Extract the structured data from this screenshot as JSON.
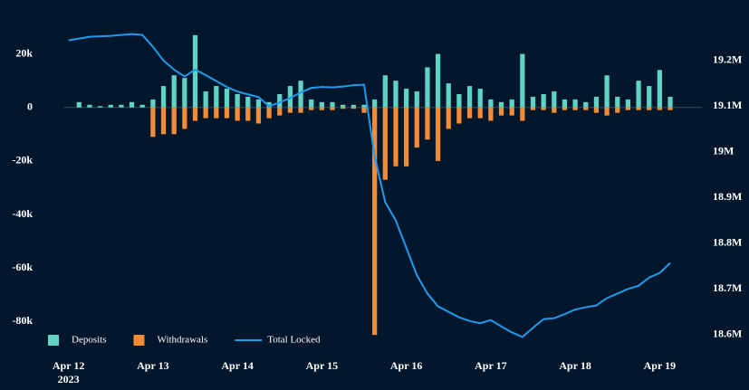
{
  "chart_data": {
    "type": "bar",
    "x": [
      "2023-04-12T00:00",
      "2023-04-12T03:00",
      "2023-04-12T06:00",
      "2023-04-12T09:00",
      "2023-04-12T12:00",
      "2023-04-12T15:00",
      "2023-04-12T18:00",
      "2023-04-12T21:00",
      "2023-04-13T00:00",
      "2023-04-13T03:00",
      "2023-04-13T06:00",
      "2023-04-13T09:00",
      "2023-04-13T12:00",
      "2023-04-13T15:00",
      "2023-04-13T18:00",
      "2023-04-13T21:00",
      "2023-04-14T00:00",
      "2023-04-14T03:00",
      "2023-04-14T06:00",
      "2023-04-14T09:00",
      "2023-04-14T12:00",
      "2023-04-14T15:00",
      "2023-04-14T18:00",
      "2023-04-14T21:00",
      "2023-04-15T00:00",
      "2023-04-15T03:00",
      "2023-04-15T06:00",
      "2023-04-15T09:00",
      "2023-04-15T12:00",
      "2023-04-15T15:00",
      "2023-04-15T18:00",
      "2023-04-15T21:00",
      "2023-04-16T00:00",
      "2023-04-16T03:00",
      "2023-04-16T06:00",
      "2023-04-16T09:00",
      "2023-04-16T12:00",
      "2023-04-16T15:00",
      "2023-04-16T18:00",
      "2023-04-16T21:00",
      "2023-04-17T00:00",
      "2023-04-17T03:00",
      "2023-04-17T06:00",
      "2023-04-17T09:00",
      "2023-04-17T12:00",
      "2023-04-17T15:00",
      "2023-04-17T18:00",
      "2023-04-17T21:00",
      "2023-04-18T00:00",
      "2023-04-18T03:00",
      "2023-04-18T06:00",
      "2023-04-18T09:00",
      "2023-04-18T12:00",
      "2023-04-18T15:00",
      "2023-04-18T18:00",
      "2023-04-18T21:00",
      "2023-04-19T00:00",
      "2023-04-19T03:00"
    ],
    "series": [
      {
        "name": "Deposits",
        "type": "bar",
        "color": "#5fd3c6",
        "values": [
          0,
          2000,
          1000,
          500,
          1000,
          1000,
          2000,
          1000,
          3000,
          8000,
          12000,
          11000,
          27000,
          6000,
          8000,
          7000,
          5000,
          4000,
          3000,
          2000,
          5000,
          8000,
          10000,
          3000,
          2000,
          2000,
          1000,
          1000,
          1000,
          3000,
          12000,
          10000,
          7000,
          6000,
          15000,
          20000,
          9000,
          5000,
          8000,
          7000,
          3000,
          2000,
          3000,
          20000,
          4000,
          5000,
          6000,
          3000,
          3000,
          2000,
          4000,
          12000,
          4000,
          3000,
          10000,
          8000,
          14000,
          4000
        ]
      },
      {
        "name": "Withdrawals",
        "type": "bar",
        "color": "#f28c38",
        "values": [
          0,
          0,
          0,
          0,
          0,
          0,
          0,
          0,
          -11000,
          -10000,
          -10000,
          -8000,
          -5000,
          -4000,
          -4000,
          -4000,
          -5000,
          -5000,
          -6000,
          -4000,
          -3000,
          -2000,
          -2000,
          -1000,
          -1000,
          -1000,
          -500,
          -500,
          -2000,
          -85000,
          -27000,
          -22000,
          -22000,
          -15000,
          -12000,
          -20000,
          -8000,
          -6000,
          -4000,
          -4000,
          -5000,
          -3000,
          -3000,
          -5000,
          -1000,
          -1000,
          -2000,
          -1000,
          -1000,
          -1000,
          -2000,
          -3000,
          -2000,
          -1000,
          -1000,
          -1000,
          -1000,
          -1000
        ]
      },
      {
        "name": "Total Locked",
        "type": "line",
        "axis": "y2",
        "color": "#1e9bf0",
        "values": [
          19244000,
          19248000,
          19252000,
          19253000,
          19254000,
          19256000,
          19258000,
          19256000,
          19230000,
          19200000,
          19180000,
          19165000,
          19180000,
          19168000,
          19155000,
          19142000,
          19132000,
          19126000,
          19120000,
          19100000,
          19108000,
          19118000,
          19130000,
          19140000,
          19142000,
          19141000,
          19143000,
          19146000,
          19147000,
          18990000,
          18890000,
          18850000,
          18790000,
          18730000,
          18690000,
          18662000,
          18650000,
          18638000,
          18630000,
          18625000,
          18632000,
          18618000,
          18605000,
          18595000,
          18615000,
          18634000,
          18636000,
          18645000,
          18655000,
          18660000,
          18664000,
          18680000,
          18690000,
          18700000,
          18707000,
          18725000,
          18735000,
          18757000
        ]
      }
    ],
    "xlim": [
      "2023-04-11T12:00",
      "2023-04-19T12:00"
    ],
    "xticks": [
      {
        "value": "2023-04-12T00:00",
        "label": "Apr 12"
      },
      {
        "value": "2023-04-13T00:00",
        "label": "Apr 13"
      },
      {
        "value": "2023-04-14T00:00",
        "label": "Apr 14"
      },
      {
        "value": "2023-04-15T00:00",
        "label": "Apr 15"
      },
      {
        "value": "2023-04-16T00:00",
        "label": "Apr 16"
      },
      {
        "value": "2023-04-17T00:00",
        "label": "Apr 17"
      },
      {
        "value": "2023-04-18T00:00",
        "label": "Apr 18"
      },
      {
        "value": "2023-04-19T00:00",
        "label": "Apr 19"
      }
    ],
    "x_year_label": "2023",
    "ylim": [
      -90000,
      30000
    ],
    "yticks": [
      {
        "value": 20000,
        "label": "20k"
      },
      0,
      {
        "value": -20000,
        "label": "-20k"
      },
      {
        "value": -40000,
        "label": "-40k"
      },
      {
        "value": -60000,
        "label": "-60k"
      },
      {
        "value": -80000,
        "label": "-80k"
      }
    ],
    "y2lim": [
      18570000,
      19273000
    ],
    "y2ticks": [
      {
        "value": 19200000,
        "label": "19.2M"
      },
      {
        "value": 19100000,
        "label": "19.1M"
      },
      {
        "value": 19000000,
        "label": "19M"
      },
      {
        "value": 18900000,
        "label": "18.9M"
      },
      {
        "value": 18800000,
        "label": "18.8M"
      },
      {
        "value": 18700000,
        "label": "18.7M"
      },
      {
        "value": 18600000,
        "label": "18.6M"
      }
    ],
    "legend": "bottom-left"
  }
}
